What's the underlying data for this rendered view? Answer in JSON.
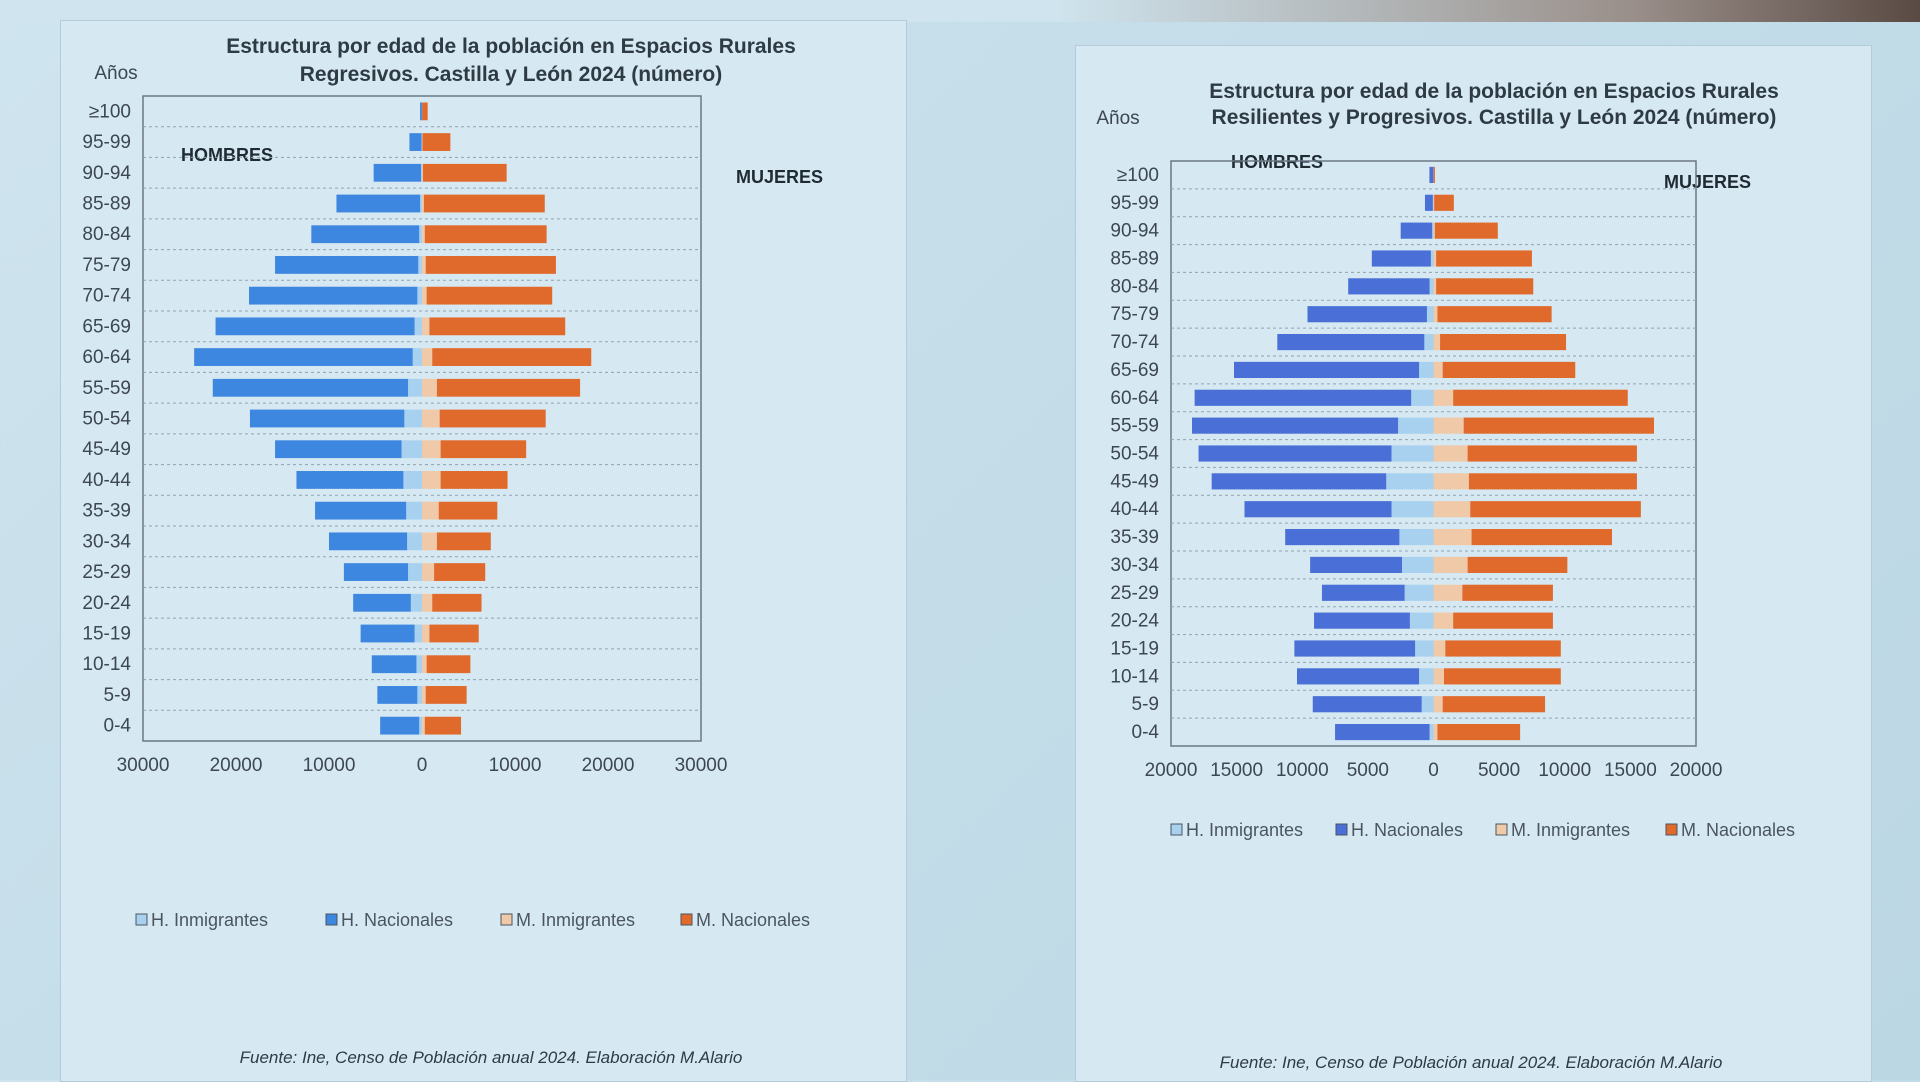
{
  "colors": {
    "h_inmigrantes": "#a8d0ef",
    "h_nacionales_left": "#3d87e0",
    "h_nacionales_right": "#4a6fd6",
    "m_inmigrantes": "#efc9a8",
    "m_nacionales": "#e06a2c"
  },
  "chart_data": [
    {
      "type": "bar",
      "subtype": "population-pyramid",
      "title_line1": "Estructura por edad de la población  en Espacios Rurales",
      "title_line2": "Regresivos. Castilla y León 2024 (número)",
      "y_label": "Años",
      "left_label": "HOMBRES",
      "right_label": "MUJERES",
      "xlim": [
        -30000,
        30000
      ],
      "x_ticks": [
        -30000,
        -20000,
        -10000,
        0,
        10000,
        20000,
        30000
      ],
      "x_tick_labels": [
        "30000",
        "20000",
        "10000",
        "0",
        "10000",
        "20000",
        "30000"
      ],
      "categories": [
        "0-4",
        "5-9",
        "10-14",
        "15-19",
        "20-24",
        "25-29",
        "30-34",
        "35-39",
        "40-44",
        "45-49",
        "50-54",
        "55-59",
        "60-64",
        "65-69",
        "70-74",
        "75-79",
        "80-84",
        "85-89",
        "90-94",
        "95-99",
        "≥100"
      ],
      "series": [
        {
          "name": "H. Inmigrantes",
          "values": [
            300,
            500,
            600,
            800,
            1200,
            1500,
            1600,
            1700,
            2000,
            2200,
            1900,
            1500,
            1000,
            800,
            500,
            400,
            300,
            200,
            100,
            50,
            10
          ]
        },
        {
          "name": "H. Nacionales",
          "values": [
            4200,
            4300,
            4800,
            5800,
            6200,
            6900,
            8400,
            9800,
            11500,
            13600,
            16600,
            21000,
            23500,
            21400,
            18100,
            15400,
            11600,
            9000,
            5100,
            1300,
            200
          ]
        },
        {
          "name": "M. Inmigrantes",
          "values": [
            300,
            400,
            500,
            800,
            1100,
            1300,
            1600,
            1800,
            2000,
            2000,
            1900,
            1600,
            1100,
            800,
            500,
            400,
            300,
            200,
            100,
            50,
            10
          ]
        },
        {
          "name": "M. Nacionales",
          "values": [
            3900,
            4400,
            4700,
            5300,
            5300,
            5500,
            5800,
            6300,
            7200,
            9200,
            11400,
            15400,
            17100,
            14600,
            13500,
            14000,
            13100,
            13000,
            9000,
            3000,
            600
          ]
        }
      ],
      "legend": [
        "H. Inmigrantes",
        "H. Nacionales",
        "M. Inmigrantes",
        "M. Nacionales"
      ],
      "source": "Fuente: Ine, Censo de Población anual 2024. Elaboración M.Alario"
    },
    {
      "type": "bar",
      "subtype": "population-pyramid",
      "title_line1": "Estructura por edad de la población  en Espacios Rurales",
      "title_line2": "Resilientes y Progresivos. Castilla y León 2024 (número)",
      "y_label": "Años",
      "left_label": "HOMBRES",
      "right_label": "MUJERES",
      "xlim": [
        -20000,
        20000
      ],
      "x_ticks": [
        -20000,
        -15000,
        -10000,
        -5000,
        0,
        5000,
        10000,
        15000,
        20000
      ],
      "x_tick_labels": [
        "20000",
        "15000",
        "10000",
        "5000",
        "0",
        "5000",
        "10000",
        "15000",
        "20000"
      ],
      "categories": [
        "0-4",
        "5-9",
        "10-14",
        "15-19",
        "20-24",
        "25-29",
        "30-34",
        "35-39",
        "40-44",
        "45-49",
        "50-54",
        "55-59",
        "60-64",
        "65-69",
        "70-74",
        "75-79",
        "80-84",
        "85-89",
        "90-94",
        "95-99",
        "≥100"
      ],
      "series": [
        {
          "name": "H. Inmigrantes",
          "values": [
            300,
            900,
            1100,
            1400,
            1800,
            2200,
            2400,
            2600,
            3200,
            3600,
            3200,
            2700,
            1700,
            1100,
            700,
            500,
            300,
            200,
            100,
            50,
            10
          ]
        },
        {
          "name": "H. Nacionales",
          "values": [
            7200,
            8300,
            9300,
            9200,
            7300,
            6300,
            7000,
            8700,
            11200,
            13300,
            14700,
            15700,
            16500,
            14100,
            11200,
            9100,
            6200,
            4500,
            2400,
            600,
            300
          ]
        },
        {
          "name": "M. Inmigrantes",
          "values": [
            300,
            700,
            800,
            900,
            1500,
            2200,
            2600,
            2900,
            2800,
            2700,
            2600,
            2300,
            1500,
            700,
            500,
            300,
            200,
            200,
            100,
            50,
            10
          ]
        },
        {
          "name": "M. Nacionales",
          "values": [
            6300,
            7800,
            8900,
            8800,
            7600,
            6900,
            7600,
            10700,
            13000,
            12800,
            12900,
            14500,
            13300,
            10100,
            9600,
            8700,
            7400,
            7300,
            4800,
            1500,
            100
          ]
        }
      ],
      "legend": [
        "H. Inmigrantes",
        "H. Nacionales",
        "M. Inmigrantes",
        "M. Nacionales"
      ],
      "source": "Fuente: Ine, Censo de Población anual 2024. Elaboración M.Alario"
    }
  ]
}
